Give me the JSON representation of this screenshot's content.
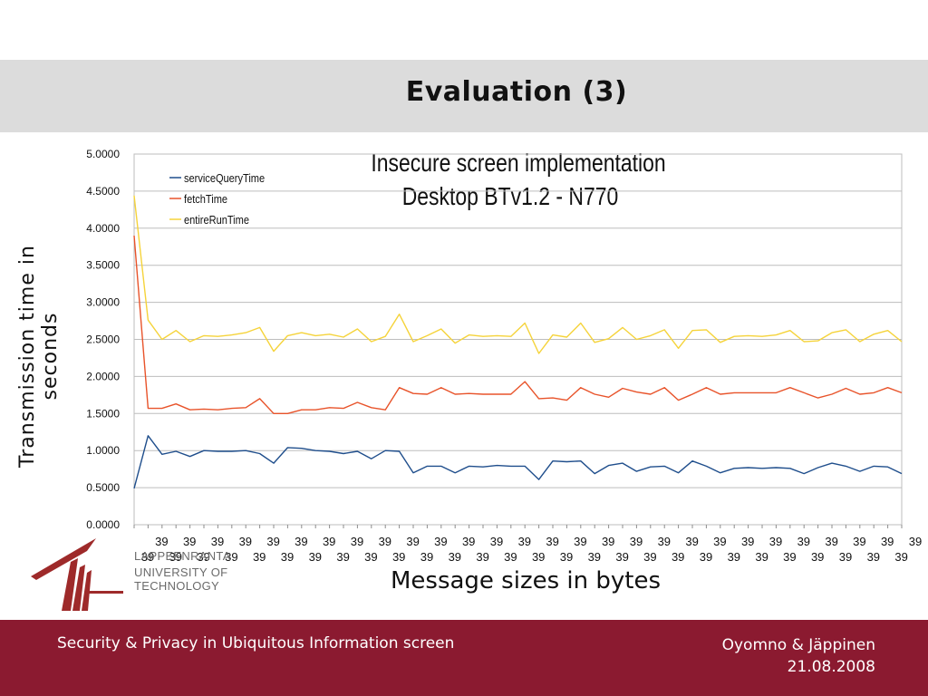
{
  "slide": {
    "title": "Evaluation (3)",
    "footer_left": "Security & Privacy in Ubiquitous Information screen",
    "footer_authors": "Oyomno & Jäppinen",
    "footer_date": "21.08.2008",
    "logo_line1": "LAPPEENRANTA",
    "logo_line2": "UNIVERSITY OF TECHNOLOGY",
    "colors": {
      "title_band": "#dcdcdc",
      "footer_band": "#8b1a30",
      "logo": "#9e2a2a"
    }
  },
  "chart_data": {
    "type": "line",
    "title_line1": "Insecure screen implementation",
    "title_line2": "Desktop BTv1.2 - N770",
    "xlabel": "Message sizes in bytes",
    "ylabel": "Transmission time in seconds",
    "ylim": [
      0,
      5
    ],
    "y_ticks": [
      "0.0000",
      "0.5000",
      "1.0000",
      "1.5000",
      "2.0000",
      "2.5000",
      "3.0000",
      "3.5000",
      "4.0000",
      "4.5000",
      "5.0000"
    ],
    "x_tick_label": "39",
    "grid": "horizontal",
    "legend_position": "top-left",
    "series": [
      {
        "name": "serviceQueryTime",
        "color": "#1f4e8c",
        "values": [
          0.49,
          1.2,
          0.95,
          0.99,
          0.92,
          1.0,
          0.99,
          0.99,
          1.0,
          0.96,
          0.83,
          1.04,
          1.03,
          1.0,
          0.99,
          0.96,
          0.99,
          0.89,
          1.0,
          0.99,
          0.7,
          0.79,
          0.79,
          0.7,
          0.79,
          0.78,
          0.8,
          0.79,
          0.79,
          0.61,
          0.86,
          0.85,
          0.86,
          0.69,
          0.8,
          0.83,
          0.72,
          0.78,
          0.79,
          0.7,
          0.86,
          0.79,
          0.7,
          0.76,
          0.77,
          0.76,
          0.77,
          0.76,
          0.69,
          0.77,
          0.83,
          0.79,
          0.72,
          0.79,
          0.78,
          0.69
        ]
      },
      {
        "name": "fetchTime",
        "color": "#e8532a",
        "values": [
          3.9,
          1.57,
          1.57,
          1.63,
          1.55,
          1.56,
          1.55,
          1.57,
          1.58,
          1.7,
          1.5,
          1.5,
          1.55,
          1.55,
          1.58,
          1.57,
          1.65,
          1.58,
          1.55,
          1.85,
          1.77,
          1.76,
          1.85,
          1.76,
          1.77,
          1.76,
          1.76,
          1.76,
          1.93,
          1.7,
          1.71,
          1.68,
          1.85,
          1.76,
          1.72,
          1.84,
          1.79,
          1.76,
          1.85,
          1.68,
          1.76,
          1.85,
          1.76,
          1.78,
          1.78,
          1.78,
          1.78,
          1.85,
          1.78,
          1.71,
          1.76,
          1.84,
          1.76,
          1.78,
          1.85,
          1.78
        ]
      },
      {
        "name": "entireRunTime",
        "color": "#f5d33a",
        "values": [
          4.44,
          2.76,
          2.5,
          2.62,
          2.47,
          2.55,
          2.54,
          2.56,
          2.59,
          2.66,
          2.34,
          2.55,
          2.59,
          2.55,
          2.57,
          2.53,
          2.64,
          2.47,
          2.54,
          2.84,
          2.47,
          2.55,
          2.64,
          2.45,
          2.56,
          2.54,
          2.55,
          2.54,
          2.72,
          2.31,
          2.56,
          2.53,
          2.72,
          2.46,
          2.51,
          2.66,
          2.5,
          2.55,
          2.63,
          2.38,
          2.62,
          2.63,
          2.46,
          2.54,
          2.55,
          2.54,
          2.56,
          2.62,
          2.47,
          2.48,
          2.59,
          2.63,
          2.47,
          2.57,
          2.62,
          2.47
        ]
      }
    ]
  }
}
